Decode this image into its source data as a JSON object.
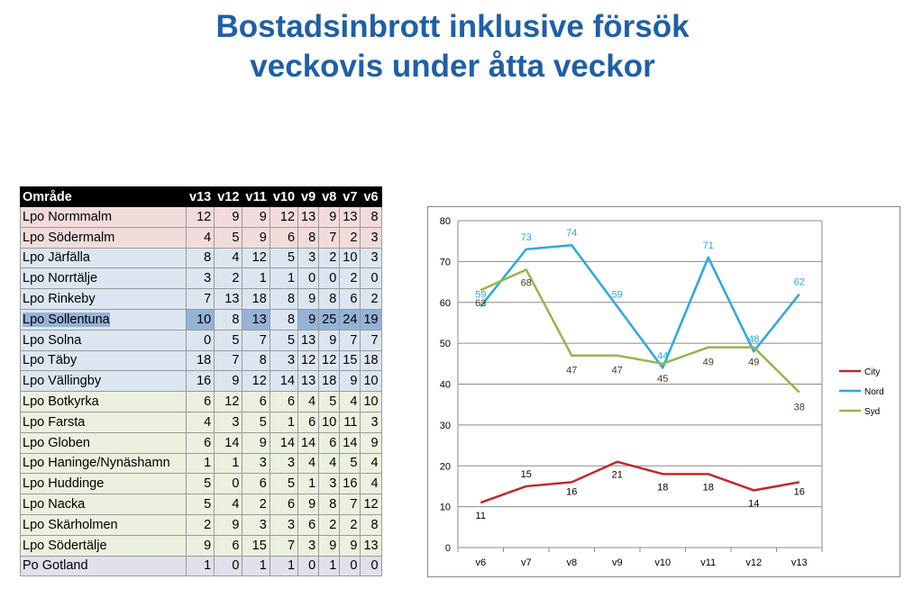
{
  "title": {
    "line1": "Bostadsinbrott inklusive försök",
    "line2": "veckovis under åtta veckor"
  },
  "table": {
    "headers": [
      "Område",
      "v13",
      "v12",
      "v11",
      "v10",
      "v9",
      "v8",
      "v7",
      "v6"
    ],
    "rows": [
      {
        "area": "Lpo Normmalm",
        "group": "red",
        "values": [
          12,
          9,
          9,
          12,
          13,
          9,
          13,
          8
        ]
      },
      {
        "area": "Lpo Södermalm",
        "group": "red",
        "values": [
          4,
          5,
          9,
          6,
          8,
          7,
          2,
          3
        ]
      },
      {
        "area": "Lpo Järfälla",
        "group": "blue",
        "values": [
          8,
          4,
          12,
          5,
          3,
          2,
          10,
          3
        ]
      },
      {
        "area": "Lpo Norrtälje",
        "group": "blue",
        "values": [
          3,
          2,
          1,
          1,
          0,
          0,
          2,
          0
        ]
      },
      {
        "area": "Lpo Rinkeby",
        "group": "blue",
        "values": [
          7,
          13,
          18,
          8,
          9,
          8,
          6,
          2
        ]
      },
      {
        "area": "Lpo Sollentuna",
        "group": "sel",
        "values": [
          10,
          8,
          13,
          8,
          9,
          25,
          24,
          19
        ]
      },
      {
        "area": "Lpo Solna",
        "group": "blue",
        "values": [
          0,
          5,
          7,
          5,
          13,
          9,
          7,
          7
        ]
      },
      {
        "area": "Lpo Täby",
        "group": "blue",
        "values": [
          18,
          7,
          8,
          3,
          12,
          12,
          15,
          18
        ]
      },
      {
        "area": "Lpo Vällingby",
        "group": "blue",
        "values": [
          16,
          9,
          12,
          14,
          13,
          18,
          9,
          10
        ]
      },
      {
        "area": "Lpo Botkyrka",
        "group": "green",
        "values": [
          6,
          12,
          6,
          6,
          4,
          5,
          4,
          10
        ]
      },
      {
        "area": "Lpo Farsta",
        "group": "green",
        "values": [
          4,
          3,
          5,
          1,
          6,
          10,
          11,
          3
        ]
      },
      {
        "area": "Lpo Globen",
        "group": "green",
        "values": [
          6,
          14,
          9,
          14,
          14,
          6,
          14,
          9
        ]
      },
      {
        "area": "Lpo Haninge/Nynäshamn",
        "group": "green",
        "values": [
          1,
          1,
          3,
          3,
          4,
          4,
          5,
          4
        ]
      },
      {
        "area": "Lpo Huddinge",
        "group": "green",
        "values": [
          5,
          0,
          6,
          5,
          1,
          3,
          16,
          4
        ]
      },
      {
        "area": "Lpo Nacka",
        "group": "green",
        "values": [
          5,
          4,
          2,
          6,
          9,
          8,
          7,
          12
        ]
      },
      {
        "area": "Lpo Skärholmen",
        "group": "green",
        "values": [
          2,
          9,
          3,
          3,
          6,
          2,
          2,
          8
        ]
      },
      {
        "area": "Lpo Södertälje",
        "group": "green",
        "values": [
          9,
          6,
          15,
          7,
          3,
          9,
          9,
          13
        ]
      },
      {
        "area": "Po Gotland",
        "group": "purple",
        "values": [
          1,
          0,
          1,
          1,
          0,
          1,
          0,
          0
        ]
      }
    ]
  },
  "chart_data": {
    "type": "line",
    "categories": [
      "v6",
      "v7",
      "v8",
      "v9",
      "v10",
      "v11",
      "v12",
      "v13"
    ],
    "series": [
      {
        "name": "City",
        "color": "#c0282c",
        "values": [
          11,
          15,
          16,
          21,
          18,
          18,
          14,
          16
        ]
      },
      {
        "name": "Nord",
        "color": "#29a9e1",
        "values": [
          59,
          73,
          74,
          59,
          44,
          71,
          48,
          62
        ]
      },
      {
        "name": "Syd",
        "color": "#93b64c",
        "values": [
          63,
          68,
          47,
          47,
          45,
          49,
          49,
          38
        ]
      }
    ],
    "ylim": [
      0,
      80
    ],
    "yticks": [
      0,
      10,
      20,
      30,
      40,
      50,
      60,
      70,
      80
    ],
    "grid": true,
    "legend": "right",
    "title": "",
    "xlabel": "",
    "ylabel": ""
  }
}
